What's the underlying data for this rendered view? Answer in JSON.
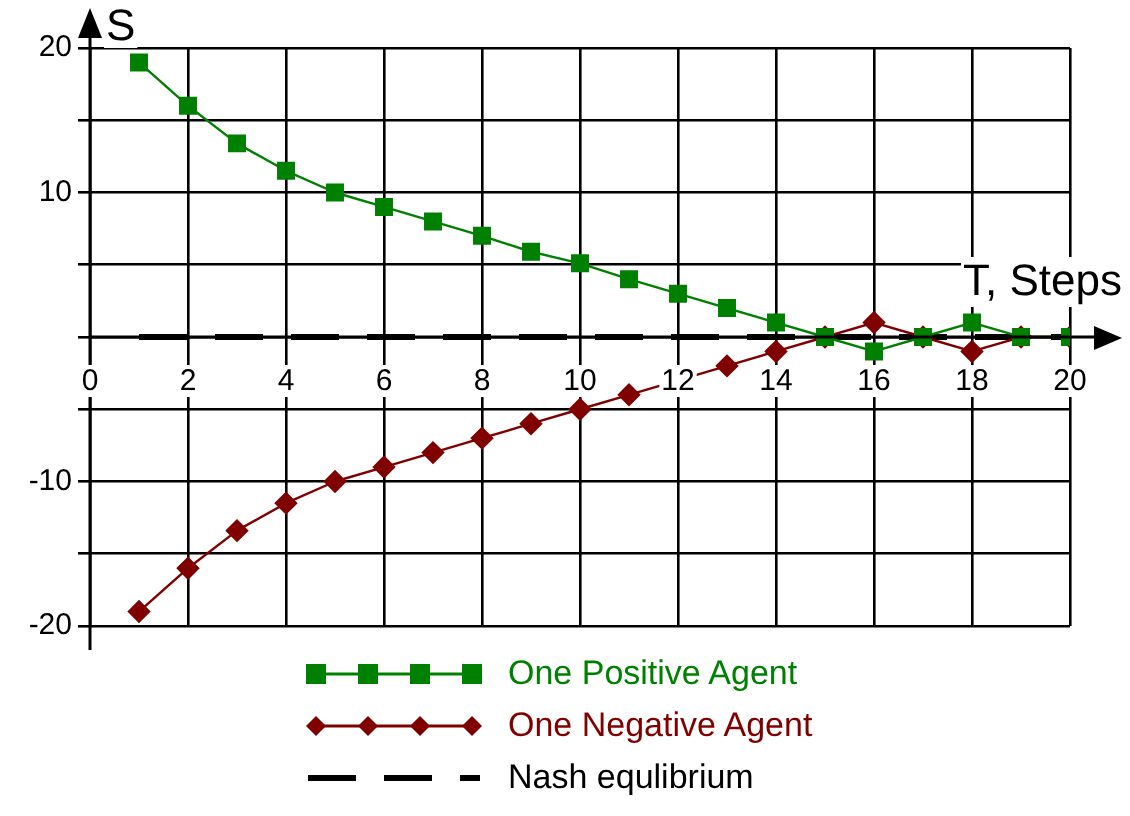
{
  "chart_data": {
    "type": "line",
    "xlabel": "T, Steps",
    "ylabel": "S",
    "x": [
      1,
      2,
      3,
      4,
      5,
      6,
      7,
      8,
      9,
      10,
      11,
      12,
      13,
      14,
      15,
      16,
      17,
      18,
      19,
      20
    ],
    "xlim": [
      0,
      20
    ],
    "xticks": [
      0,
      2,
      4,
      6,
      8,
      10,
      12,
      14,
      16,
      18,
      20
    ],
    "ylim": [
      -20,
      20
    ],
    "yticks": [
      -20,
      {
        "value": -15,
        "label": null
      },
      -10,
      {
        "value": -5,
        "label": null
      },
      {
        "value": 0,
        "label": null
      },
      {
        "value": 5,
        "label": null
      },
      10,
      {
        "value": 15,
        "label": null
      },
      20
    ],
    "grid": true,
    "legend": "bottom",
    "series": [
      {
        "name": "One Positive Agent",
        "color": "#008000",
        "marker": "square",
        "values": [
          19,
          16,
          13.4,
          11.5,
          10,
          9,
          8,
          7,
          5.9,
          5.1,
          4,
          3,
          2,
          1,
          0,
          -1,
          0,
          1,
          0,
          0
        ]
      },
      {
        "name": "One Negative Agent",
        "color": "#800000",
        "marker": "diamond",
        "values": [
          -19,
          -16,
          -13.4,
          -11.5,
          -10,
          -9,
          -8,
          -7,
          -6,
          -5,
          -4,
          -3,
          -2,
          -1,
          0,
          1,
          0,
          -1,
          0,
          0
        ]
      },
      {
        "name": "Nash equlibrium",
        "color": "#000000",
        "marker": "none",
        "line_style": "dashed",
        "x": [
          1,
          20
        ],
        "values": [
          0,
          0
        ]
      }
    ]
  }
}
